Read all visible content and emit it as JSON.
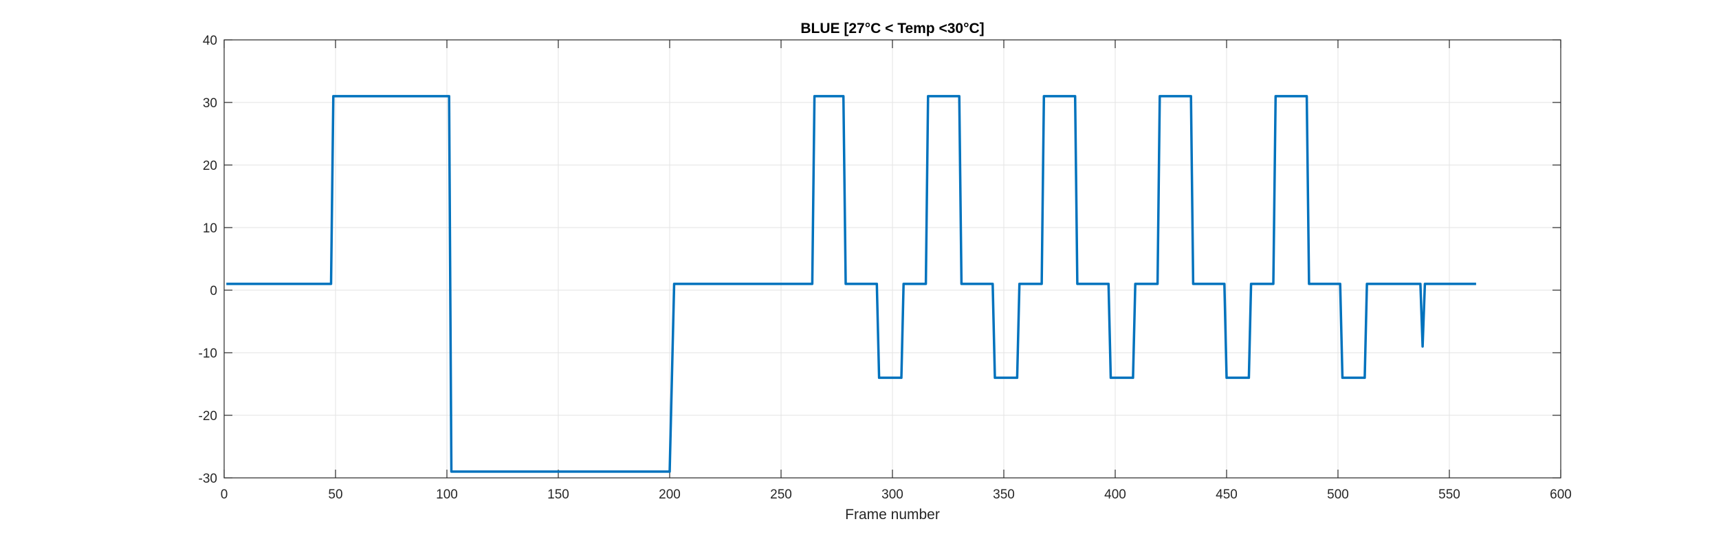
{
  "chart_data": {
    "type": "line",
    "title": "BLUE [27°C < Temp <30°C]",
    "xlabel": "Frame number",
    "ylabel": "",
    "xlim": [
      0,
      600
    ],
    "ylim": [
      -30,
      40
    ],
    "xticks": [
      0,
      50,
      100,
      150,
      200,
      250,
      300,
      350,
      400,
      450,
      500,
      550,
      600
    ],
    "yticks": [
      -30,
      -20,
      -10,
      0,
      10,
      20,
      30,
      40
    ],
    "grid": true,
    "colors": {
      "series": "#0072bd",
      "axis": "#262626",
      "grid": "#e3e3e3"
    },
    "series": [
      {
        "x": [
          1,
          48,
          49,
          101,
          102,
          200,
          202,
          264,
          265,
          278,
          279,
          293,
          294,
          304,
          305,
          315,
          316,
          330,
          331,
          345,
          346,
          356,
          357,
          367,
          368,
          382,
          383,
          397,
          398,
          408,
          409,
          419,
          420,
          434,
          435,
          449,
          450,
          460,
          461,
          471,
          472,
          486,
          487,
          501,
          502,
          512,
          513,
          537,
          538,
          539,
          562
        ],
        "y": [
          1,
          1,
          31,
          31,
          -29,
          -29,
          1,
          1,
          31,
          31,
          1,
          1,
          -14,
          -14,
          1,
          1,
          31,
          31,
          1,
          1,
          -14,
          -14,
          1,
          1,
          31,
          31,
          1,
          1,
          -14,
          -14,
          1,
          1,
          31,
          31,
          1,
          1,
          -14,
          -14,
          1,
          1,
          31,
          31,
          1,
          1,
          -14,
          -14,
          1,
          1,
          -9,
          1,
          1
        ]
      }
    ]
  }
}
